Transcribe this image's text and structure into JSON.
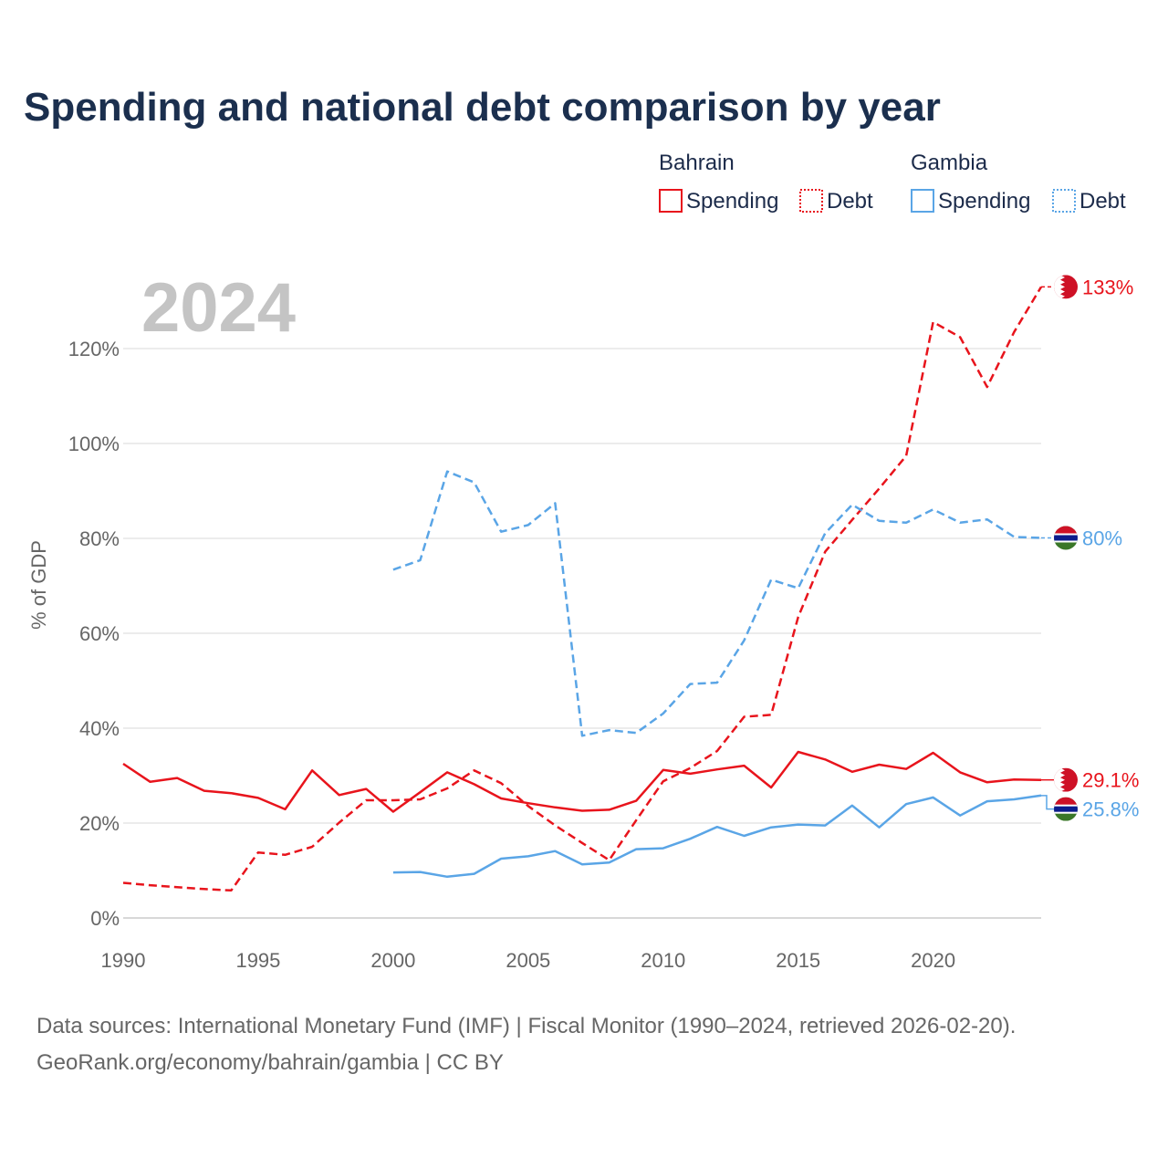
{
  "chart_data": {
    "type": "line",
    "title": "Spending and national debt comparison by year",
    "year_label": "2024",
    "ylabel": "% of GDP",
    "xlim": [
      1990,
      2024
    ],
    "ylim": [
      0,
      140
    ],
    "x_ticks": [
      1990,
      1995,
      2000,
      2005,
      2010,
      2015,
      2020
    ],
    "y_ticks": [
      0,
      20,
      40,
      60,
      80,
      100,
      120
    ],
    "y_tick_labels": [
      "0%",
      "20%",
      "40%",
      "60%",
      "80%",
      "100%",
      "120%"
    ],
    "x_tick_labels": [
      "1990",
      "1995",
      "2000",
      "2005",
      "2010",
      "2015",
      "2020"
    ],
    "legend": {
      "groups": [
        {
          "name": "Bahrain",
          "color": "#e8141c",
          "items": [
            "Spending",
            "Debt"
          ]
        },
        {
          "name": "Gambia",
          "color": "#5aa5e6",
          "items": [
            "Spending",
            "Debt"
          ]
        }
      ]
    },
    "series": [
      {
        "name": "Bahrain Spending",
        "country": "Bahrain",
        "kind": "Spending",
        "color": "#e8141c",
        "dash": "solid",
        "end_label": "29.1%",
        "x": [
          1990,
          1991,
          1992,
          1993,
          1994,
          1995,
          1996,
          1997,
          1998,
          1999,
          2000,
          2001,
          2002,
          2003,
          2004,
          2005,
          2006,
          2007,
          2008,
          2009,
          2010,
          2011,
          2012,
          2013,
          2014,
          2015,
          2016,
          2017,
          2018,
          2019,
          2020,
          2021,
          2022,
          2023,
          2024
        ],
        "values": [
          32.5,
          28.7,
          29.5,
          26.8,
          26.3,
          25.3,
          22.9,
          31.1,
          25.9,
          27.2,
          22.4,
          26.5,
          30.7,
          28.2,
          25.2,
          24.2,
          23.3,
          22.6,
          22.8,
          24.7,
          31.2,
          30.4,
          31.3,
          32.1,
          27.5,
          35.0,
          33.4,
          30.8,
          32.3,
          31.4,
          34.8,
          30.7,
          28.6,
          29.2,
          29.1
        ]
      },
      {
        "name": "Bahrain Debt",
        "country": "Bahrain",
        "kind": "Debt",
        "color": "#e8141c",
        "dash": "dashed",
        "end_label": "133%",
        "x": [
          1990,
          1991,
          1992,
          1993,
          1994,
          1995,
          1996,
          1997,
          1998,
          1999,
          2000,
          2001,
          2002,
          2003,
          2004,
          2005,
          2006,
          2007,
          2008,
          2009,
          2010,
          2011,
          2012,
          2013,
          2014,
          2015,
          2016,
          2017,
          2018,
          2019,
          2020,
          2021,
          2022,
          2023,
          2024
        ],
        "values": [
          7.4,
          6.9,
          6.5,
          6.1,
          5.8,
          13.8,
          13.3,
          15.0,
          20.1,
          24.8,
          24.8,
          25.0,
          27.3,
          31.1,
          28.4,
          23.6,
          19.5,
          15.8,
          12.2,
          20.6,
          28.8,
          31.6,
          35.2,
          42.4,
          42.8,
          63.4,
          77.2,
          83.9,
          90.5,
          97.4,
          125.6,
          122.4,
          111.9,
          123.5,
          133.0
        ]
      },
      {
        "name": "Gambia Spending",
        "country": "Gambia",
        "kind": "Spending",
        "color": "#5aa5e6",
        "dash": "solid",
        "end_label": "25.8%",
        "x": [
          2000,
          2001,
          2002,
          2003,
          2004,
          2005,
          2006,
          2007,
          2008,
          2009,
          2010,
          2011,
          2012,
          2013,
          2014,
          2015,
          2016,
          2017,
          2018,
          2019,
          2020,
          2021,
          2022,
          2023,
          2024
        ],
        "values": [
          9.6,
          9.7,
          8.7,
          9.3,
          12.5,
          13.0,
          14.1,
          11.3,
          11.7,
          14.5,
          14.7,
          16.7,
          19.2,
          17.3,
          19.1,
          19.7,
          19.5,
          23.7,
          19.1,
          24.0,
          25.4,
          21.6,
          24.6,
          25.0,
          25.8
        ]
      },
      {
        "name": "Gambia Debt",
        "country": "Gambia",
        "kind": "Debt",
        "color": "#5aa5e6",
        "dash": "dashed",
        "end_label": "80%",
        "x": [
          2000,
          2001,
          2002,
          2003,
          2004,
          2005,
          2006,
          2007,
          2008,
          2009,
          2010,
          2011,
          2012,
          2013,
          2014,
          2015,
          2016,
          2017,
          2018,
          2019,
          2020,
          2021,
          2022,
          2023,
          2024
        ],
        "values": [
          73.4,
          75.4,
          94.1,
          91.8,
          81.4,
          82.8,
          87.4,
          38.4,
          39.6,
          39.0,
          43.1,
          49.3,
          49.6,
          58.5,
          71.3,
          69.5,
          81.1,
          87.1,
          83.7,
          83.3,
          86.1,
          83.3,
          84.0,
          80.3,
          80.1
        ]
      }
    ]
  },
  "footer": {
    "line1": "Data sources: International Monetary Fund (IMF) | Fiscal Monitor (1990–2024, retrieved 2026-02-20).",
    "line2": "GeoRank.org/economy/bahrain/gambia | CC BY"
  }
}
